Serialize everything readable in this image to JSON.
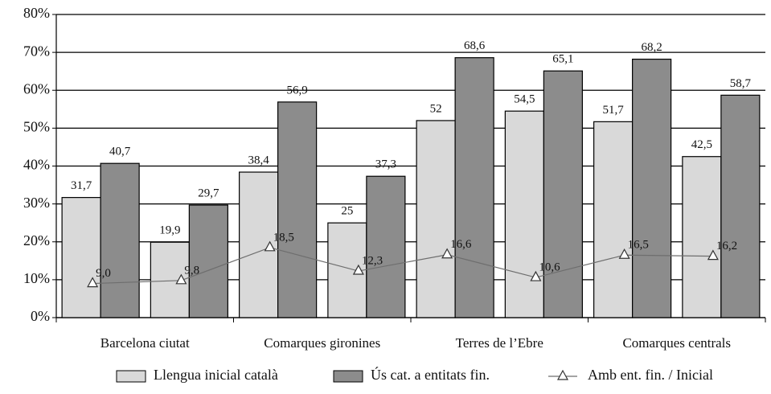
{
  "chart_data": {
    "type": "bar",
    "categories": [
      "Barcelona ciutat",
      null,
      "Comarques gironines",
      null,
      "Terres de l’Ebre",
      null,
      "Comarques centrals",
      null
    ],
    "series": [
      {
        "name": "Llengua inicial català",
        "color": "#d9d9d9",
        "type": "bar",
        "values": [
          31.7,
          19.9,
          38.4,
          25,
          52,
          54.5,
          51.7,
          42.5
        ],
        "value_labels": [
          "31,7",
          "19,9",
          "38,4",
          "25",
          "52",
          "54,5",
          "51,7",
          "42,5"
        ]
      },
      {
        "name": "Ús cat. a entitats fin.",
        "color": "#8c8c8c",
        "type": "bar",
        "values": [
          40.7,
          29.7,
          56.9,
          37.3,
          68.6,
          65.1,
          68.2,
          58.7
        ],
        "value_labels": [
          "40,7",
          "29,7",
          "56,9",
          "37,3",
          "68,6",
          "65,1",
          "68,2",
          "58,7"
        ]
      },
      {
        "name": "Amb ent. fin. / Inicial",
        "color": "#6e6e6e",
        "type": "line",
        "values": [
          9.0,
          9.8,
          18.5,
          12.3,
          16.6,
          10.6,
          16.5,
          16.2
        ],
        "value_labels": [
          "9,0",
          "9,8",
          "18,5",
          "12,3",
          "16,6",
          "10,6",
          "16,5",
          "16,2"
        ]
      }
    ],
    "ylim": [
      0,
      80
    ],
    "yticks": [
      {
        "value": 0,
        "label": "0%"
      },
      {
        "value": 10,
        "label": "10%"
      },
      {
        "value": 20,
        "label": "20%"
      },
      {
        "value": 30,
        "label": "30%"
      },
      {
        "value": 40,
        "label": "40%"
      },
      {
        "value": 50,
        "label": "50%"
      },
      {
        "value": 60,
        "label": "60%"
      },
      {
        "value": 70,
        "label": "70%"
      },
      {
        "value": 80,
        "label": "80%"
      }
    ],
    "grid": true,
    "legend": "bottom"
  }
}
